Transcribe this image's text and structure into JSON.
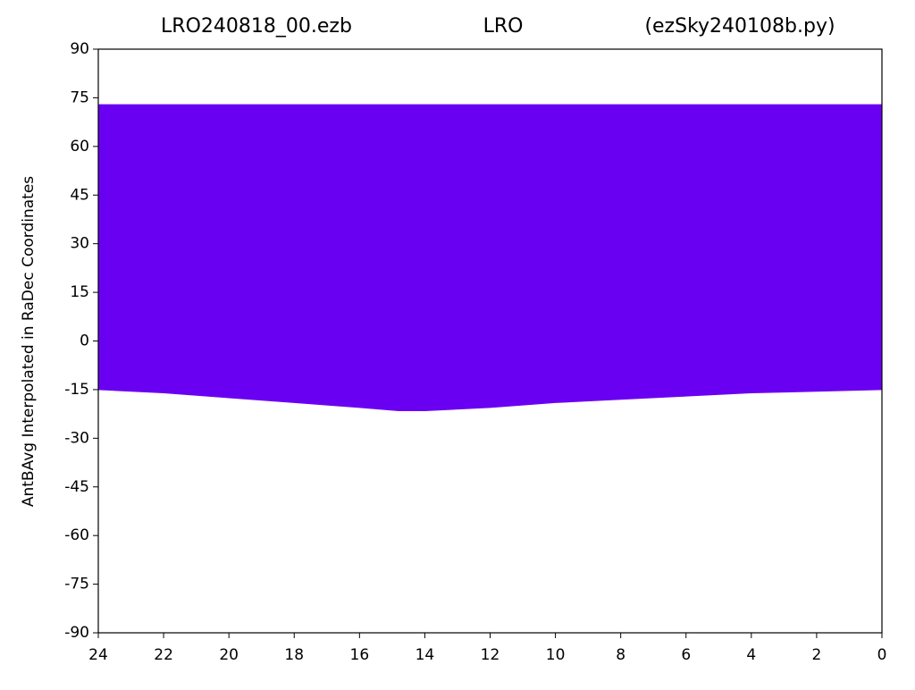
{
  "chart_data": {
    "type": "area",
    "title_parts": [
      "LRO240818_00.ezb",
      "LRO",
      "(ezSky240108b.py)"
    ],
    "ylabel": "AntBAvg Interpolated in RaDec Coordinates",
    "x": [
      24,
      22,
      20,
      18,
      16,
      14.8,
      14,
      12,
      10,
      8,
      6,
      4,
      2,
      0
    ],
    "values": [
      -15,
      -16,
      -17.5,
      -19,
      -20.5,
      -21.5,
      -21.5,
      -20.5,
      -19,
      -18,
      -17,
      -16,
      -15.5,
      -15
    ],
    "top": 73,
    "color": "#6a00f2",
    "xlim": [
      24,
      0
    ],
    "xticks": [
      24,
      22,
      20,
      18,
      16,
      14,
      12,
      10,
      8,
      6,
      4,
      2,
      0
    ],
    "ylim": [
      -90,
      90
    ],
    "yticks": [
      -90,
      -75,
      -60,
      -45,
      -30,
      -15,
      0,
      15,
      30,
      45,
      60,
      75,
      90
    ]
  }
}
